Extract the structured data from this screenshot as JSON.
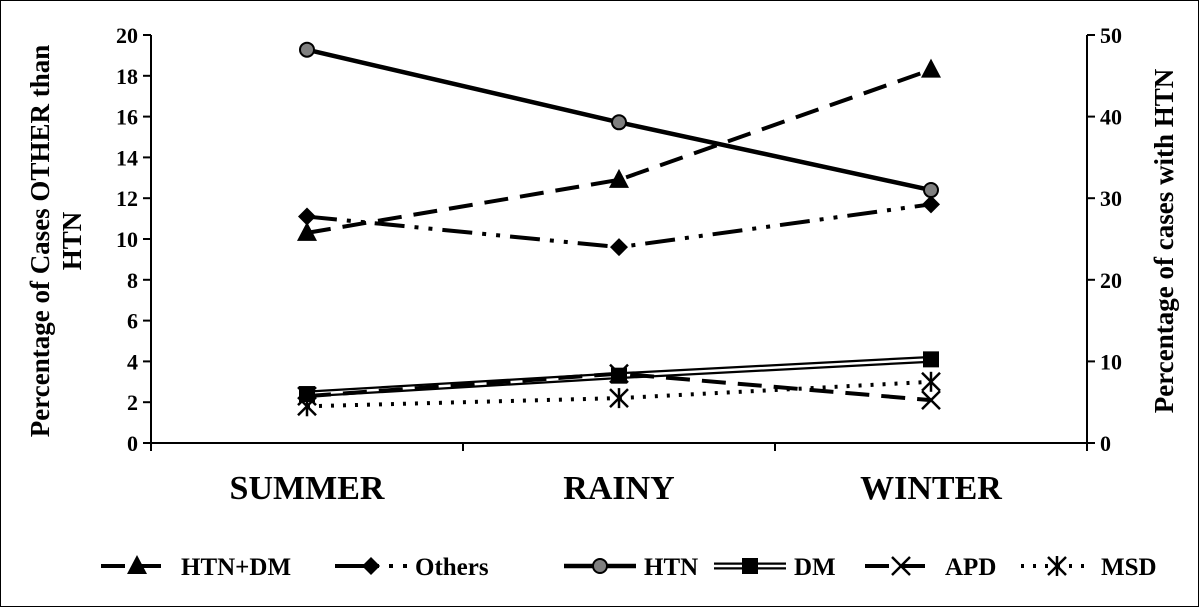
{
  "chart_data": {
    "type": "line",
    "categories": [
      "SUMMER",
      "RAINY",
      "WINTER"
    ],
    "y_left": {
      "label_line1": "Percentage of Cases OTHER than",
      "label_line2": "HTN",
      "range": [
        0,
        20
      ],
      "ticks": [
        "0",
        "2",
        "4",
        "6",
        "8",
        "10",
        "12",
        "14",
        "16",
        "18",
        "20"
      ]
    },
    "y_right": {
      "label": "Percentage of cases with HTN",
      "range": [
        0,
        50
      ],
      "ticks": [
        "0",
        "10",
        "20",
        "30",
        "40",
        "50"
      ]
    },
    "grid": false,
    "legend_position": "bottom",
    "series": [
      {
        "name": "HTN+DM",
        "axis": "left",
        "values": [
          10.3,
          12.9,
          18.3
        ],
        "style": "dash",
        "marker": "triangle"
      },
      {
        "name": "Others",
        "axis": "left",
        "values": [
          11.1,
          9.6,
          11.7
        ],
        "style": "dashdotdot",
        "marker": "diamond"
      },
      {
        "name": "HTN",
        "axis": "right",
        "values": [
          48.2,
          39.3,
          31.0
        ],
        "style": "solid",
        "marker": "circle"
      },
      {
        "name": "DM",
        "axis": "left",
        "values": [
          2.4,
          3.3,
          4.1
        ],
        "style": "double",
        "marker": "square"
      },
      {
        "name": "APD",
        "axis": "left",
        "values": [
          2.3,
          3.4,
          2.1
        ],
        "style": "dash",
        "marker": "x"
      },
      {
        "name": "MSD",
        "axis": "left",
        "values": [
          1.8,
          2.2,
          3.0
        ],
        "style": "dot",
        "marker": "star"
      }
    ]
  }
}
